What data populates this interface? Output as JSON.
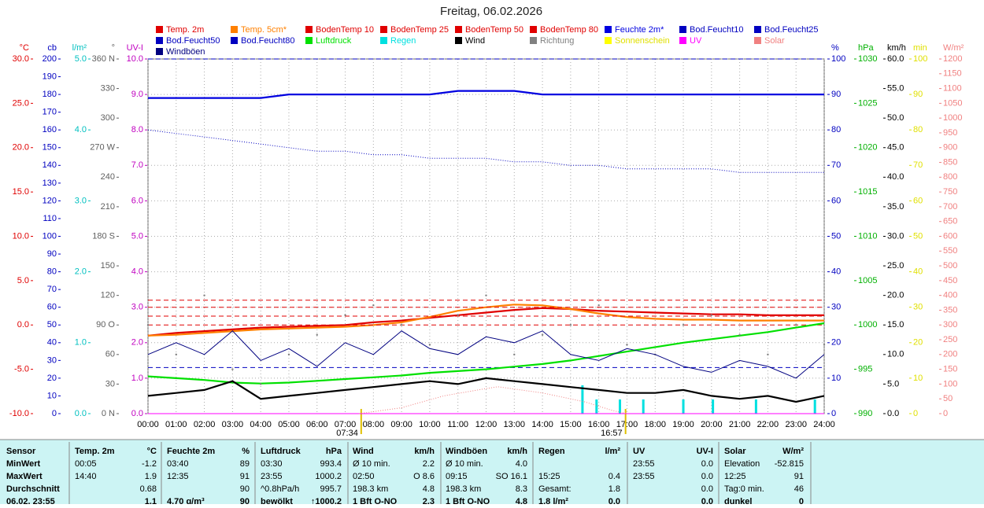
{
  "chart_data": {
    "type": "line",
    "title": "Freitag, 06.02.2026",
    "xlim": [
      0,
      24
    ],
    "xticks": [
      {
        "value": 0,
        "label": "00:00"
      },
      {
        "value": 1,
        "label": "01:00"
      },
      {
        "value": 2,
        "label": "02:00"
      },
      {
        "value": 3,
        "label": "03:00"
      },
      {
        "value": 4,
        "label": "04:00"
      },
      {
        "value": 5,
        "label": "05:00"
      },
      {
        "value": 6,
        "label": "06:00"
      },
      {
        "value": 7,
        "label": "07:00"
      },
      {
        "value": 8,
        "label": "08:00"
      },
      {
        "value": 9,
        "label": "09:00"
      },
      {
        "value": 10,
        "label": "10:00"
      },
      {
        "value": 11,
        "label": "11:00"
      },
      {
        "value": 12,
        "label": "12:00"
      },
      {
        "value": 13,
        "label": "13:00"
      },
      {
        "value": 14,
        "label": "14:00"
      },
      {
        "value": 15,
        "label": "15:00"
      },
      {
        "value": 16,
        "label": "16:00"
      },
      {
        "value": 17,
        "label": "17:00"
      },
      {
        "value": 18,
        "label": "18:00"
      },
      {
        "value": 19,
        "label": "19:00"
      },
      {
        "value": 20,
        "label": "20:00"
      },
      {
        "value": 21,
        "label": "21:00"
      },
      {
        "value": 22,
        "label": "22:00"
      },
      {
        "value": 23,
        "label": "23:00"
      },
      {
        "value": 24,
        "label": "24:00"
      }
    ],
    "x": [
      0,
      1,
      2,
      3,
      4,
      5,
      6,
      7,
      8,
      9,
      10,
      11,
      12,
      13,
      14,
      15,
      16,
      17,
      18,
      19,
      20,
      21,
      22,
      23,
      24
    ],
    "annotations": [
      {
        "value": 7.5667,
        "label": "07:34"
      },
      {
        "value": 16.95,
        "label": "16:57"
      }
    ],
    "axes": [
      {
        "label": "°C",
        "side": "left",
        "color": "#e00000",
        "lim": [
          -10,
          30
        ],
        "ticks": [
          {
            "value": -10,
            "label": "-10.0"
          },
          {
            "value": -5,
            "label": "-5.0"
          },
          {
            "value": 0,
            "label": "0.0"
          },
          {
            "value": 5,
            "label": "5.0"
          },
          {
            "value": 10,
            "label": "10.0"
          },
          {
            "value": 15,
            "label": "15.0"
          },
          {
            "value": 20,
            "label": "20.0"
          },
          {
            "value": 25,
            "label": "25.0"
          },
          {
            "value": 30,
            "label": "30.0"
          }
        ]
      },
      {
        "label": "cb",
        "side": "left",
        "color": "#0000c0",
        "lim": [
          0,
          200
        ],
        "ticks": [
          0,
          10,
          20,
          30,
          40,
          50,
          60,
          70,
          80,
          90,
          100,
          110,
          120,
          130,
          140,
          150,
          160,
          170,
          180,
          190,
          200
        ]
      },
      {
        "label": "l/m²",
        "side": "left",
        "color": "#00c0c0",
        "lim": [
          0,
          5
        ],
        "ticks": [
          {
            "value": 0,
            "label": "0.0"
          },
          {
            "value": 1,
            "label": "1.0"
          },
          {
            "value": 2,
            "label": "2.0"
          },
          {
            "value": 3,
            "label": "3.0"
          },
          {
            "value": 4,
            "label": "4.0"
          },
          {
            "value": 5,
            "label": "5.0"
          }
        ]
      },
      {
        "label": "°",
        "side": "left",
        "color": "#606060",
        "lim": [
          0,
          360
        ],
        "ticks": [
          {
            "value": 0,
            "label": "0 N"
          },
          30,
          60,
          {
            "value": 90,
            "label": "90 O"
          },
          120,
          150,
          {
            "value": 180,
            "label": "180 S"
          },
          210,
          240,
          {
            "value": 270,
            "label": "270 W"
          },
          300,
          330,
          {
            "value": 360,
            "label": "360 N"
          }
        ]
      },
      {
        "label": "UV-I",
        "side": "left",
        "color": "#c000c0",
        "grid": true,
        "lim": [
          0,
          10
        ],
        "ticks": [
          {
            "value": 0,
            "label": "0.0"
          },
          {
            "value": 1,
            "label": "1.0"
          },
          {
            "value": 2,
            "label": "2.0"
          },
          {
            "value": 3,
            "label": "3.0"
          },
          {
            "value": 4,
            "label": "4.0"
          },
          {
            "value": 5,
            "label": "5.0"
          },
          {
            "value": 6,
            "label": "6.0"
          },
          {
            "value": 7,
            "label": "7.0"
          },
          {
            "value": 8,
            "label": "8.0"
          },
          {
            "value": 9,
            "label": "9.0"
          },
          {
            "value": 10,
            "label": "10.0"
          }
        ]
      },
      {
        "label": "%",
        "side": "right",
        "color": "#0000c0",
        "lim": [
          0,
          100
        ],
        "ticks": [
          0,
          10,
          20,
          30,
          40,
          50,
          60,
          70,
          80,
          90,
          100
        ]
      },
      {
        "label": "hPa",
        "side": "right",
        "color": "#00b000",
        "lim": [
          990,
          1030
        ],
        "ticks": [
          990,
          995,
          1000,
          1005,
          1010,
          1015,
          1020,
          1025,
          1030
        ]
      },
      {
        "label": "km/h",
        "side": "right",
        "color": "#000000",
        "lim": [
          0,
          60
        ],
        "ticks": [
          {
            "value": 0,
            "label": "0.0"
          },
          {
            "value": 5,
            "label": "5.0"
          },
          {
            "value": 10,
            "label": "10.0"
          },
          {
            "value": 15,
            "label": "15.0"
          },
          {
            "value": 20,
            "label": "20.0"
          },
          {
            "value": 25,
            "label": "25.0"
          },
          {
            "value": 30,
            "label": "30.0"
          },
          {
            "value": 35,
            "label": "35.0"
          },
          {
            "value": 40,
            "label": "40.0"
          },
          {
            "value": 45,
            "label": "45.0"
          },
          {
            "value": 50,
            "label": "50.0"
          },
          {
            "value": 55,
            "label": "55.0"
          },
          {
            "value": 60,
            "label": "60.0"
          }
        ]
      },
      {
        "label": "min",
        "side": "right",
        "color": "#e0e000",
        "lim": [
          0,
          100
        ],
        "ticks": [
          0,
          10,
          20,
          30,
          40,
          50,
          60,
          70,
          80,
          90,
          100
        ]
      },
      {
        "label": "W/m²",
        "side": "right",
        "color": "#f08080",
        "lim": [
          0,
          1200
        ],
        "ticks": [
          0,
          50,
          100,
          150,
          200,
          250,
          300,
          350,
          400,
          450,
          500,
          550,
          600,
          650,
          700,
          750,
          800,
          850,
          900,
          950,
          1000,
          1050,
          1100,
          1150,
          1200
        ]
      }
    ],
    "series": [
      {
        "name": "Temp. 2m",
        "color": "#e00000",
        "axis": "°C",
        "style": "thick",
        "values": [
          -1.2,
          -0.9,
          -0.7,
          -0.5,
          -0.3,
          -0.2,
          -0.1,
          0.0,
          0.3,
          0.5,
          0.8,
          1.1,
          1.4,
          1.7,
          1.9,
          1.8,
          1.6,
          1.5,
          1.4,
          1.3,
          1.2,
          1.2,
          1.1,
          1.1,
          1.1
        ]
      },
      {
        "name": "Temp. 5cm*",
        "color": "#ff8000",
        "axis": "°C",
        "style": "thick",
        "values": [
          -1.2,
          -1.1,
          -0.9,
          -0.7,
          -0.5,
          -0.4,
          -0.3,
          -0.2,
          0.0,
          0.3,
          0.9,
          1.6,
          2.0,
          2.3,
          2.2,
          1.8,
          1.3,
          0.9,
          0.7,
          0.6,
          0.6,
          0.5,
          0.5,
          0.5,
          0.5
        ]
      },
      {
        "name": "BodenTemp 10",
        "color": "#e00000",
        "axis": "°C",
        "style": "dashed",
        "x": [
          0,
          24
        ],
        "values": [
          0.0,
          0.0
        ]
      },
      {
        "name": "BodenTemp 25",
        "color": "#e00000",
        "axis": "°C",
        "style": "dashed",
        "x": [
          0,
          24
        ],
        "values": [
          1.0,
          1.0
        ]
      },
      {
        "name": "BodenTemp 50",
        "color": "#e00000",
        "axis": "°C",
        "style": "dashed",
        "x": [
          0,
          24
        ],
        "values": [
          2.0,
          2.0
        ]
      },
      {
        "name": "BodenTemp 80",
        "color": "#e00000",
        "axis": "°C",
        "style": "dashed",
        "x": [
          0,
          24
        ],
        "values": [
          2.8,
          2.8
        ]
      },
      {
        "name": "Feuchte 2m*",
        "color": "#0000e0",
        "axis": "%",
        "style": "thick",
        "values": [
          89,
          89,
          89,
          89,
          89,
          90,
          90,
          90,
          90,
          90,
          90,
          91,
          91,
          91,
          90,
          90,
          90,
          90,
          90,
          90,
          90,
          90,
          90,
          90,
          90
        ]
      },
      {
        "name": "Bod.Feucht10",
        "color": "#0000c0",
        "axis": "%",
        "style": "dotted",
        "values": [
          80,
          79,
          78,
          77,
          76,
          75,
          74,
          74,
          73,
          73,
          72,
          72,
          72,
          71,
          71,
          70,
          70,
          69,
          69,
          69,
          69,
          68,
          68,
          68,
          68
        ]
      },
      {
        "name": "Bod.Feucht25",
        "color": "#0000c0",
        "axis": "%",
        "style": "dashed",
        "x": [
          0,
          24
        ],
        "values": [
          13,
          13
        ]
      },
      {
        "name": "Bod.Feucht50",
        "color": "#0000c0",
        "axis": "%",
        "style": "dashed",
        "x": [
          0,
          24
        ],
        "values": [
          100,
          100
        ]
      },
      {
        "name": "Bod.Feucht80",
        "color": "#0000c0",
        "axis": "%",
        "style": "dashed",
        "x": [
          0,
          24
        ],
        "values": [
          100,
          100
        ]
      },
      {
        "name": "Luftdruck",
        "color": "#00e000",
        "axis": "hPa",
        "style": "thick",
        "values": [
          994.2,
          994.0,
          993.8,
          993.5,
          993.4,
          993.5,
          993.7,
          993.9,
          994.1,
          994.3,
          994.6,
          994.8,
          995.0,
          995.3,
          995.6,
          996.0,
          996.5,
          997.0,
          997.5,
          998.0,
          998.4,
          998.8,
          999.2,
          999.7,
          1000.2
        ]
      },
      {
        "name": "Regen",
        "color": "#00e0e0",
        "axis": "l/m²",
        "style": "bar",
        "x": [
          15.42,
          15.92,
          16.75,
          17.58,
          19.0,
          20.05,
          21.58,
          23.67
        ],
        "values": [
          0.4,
          0.2,
          0.2,
          0.2,
          0.2,
          0.2,
          0.2,
          0.2
        ]
      },
      {
        "name": "Wind",
        "color": "#000000",
        "axis": "km/h",
        "style": "thick",
        "values": [
          3.0,
          3.5,
          4.0,
          5.5,
          2.5,
          3.0,
          3.5,
          4.0,
          4.5,
          5.0,
          5.5,
          5.0,
          6.0,
          5.5,
          5.0,
          4.5,
          4.0,
          3.5,
          3.5,
          4.0,
          3.0,
          2.5,
          3.0,
          2.0,
          3.0
        ]
      },
      {
        "name": "Richtung",
        "color": "#808080",
        "axis": "°",
        "style": "dots",
        "values": [
          90,
          60,
          120,
          45,
          30,
          60,
          80,
          100,
          110,
          90,
          70,
          100,
          120,
          60,
          80,
          90,
          110,
          70,
          60,
          90,
          100,
          80,
          60,
          90,
          70
        ]
      },
      {
        "name": "Sonnenschein",
        "color": "#ffff00",
        "axis": "min",
        "style": "line",
        "x": [
          0,
          24
        ],
        "values": [
          0,
          0
        ]
      },
      {
        "name": "UV",
        "color": "#ff00ff",
        "axis": "UV-I",
        "style": "line",
        "x": [
          0,
          24
        ],
        "values": [
          0,
          0
        ]
      },
      {
        "name": "Solar",
        "color": "#f08080",
        "axis": "W/m²",
        "style": "dotted",
        "x": [
          7.5,
          9,
          10.5,
          12,
          12.42,
          14,
          15.5,
          16.5,
          17
        ],
        "values": [
          0,
          20,
          60,
          85,
          91,
          70,
          40,
          10,
          0
        ]
      },
      {
        "name": "Windböen",
        "color": "#000080",
        "axis": "km/h",
        "style": "line",
        "values": [
          10,
          12,
          10,
          14,
          9,
          11,
          8,
          12,
          10,
          14,
          11,
          10,
          13,
          12,
          14,
          10,
          9,
          11,
          10,
          8,
          7,
          9,
          8,
          6,
          10
        ]
      }
    ]
  },
  "stats_table": {
    "header": [
      "Sensor",
      "Temp. 2m",
      "°C",
      "Feuchte 2m",
      "%",
      "Luftdruck",
      "hPa",
      "Wind",
      "km/h",
      "Windböen",
      "km/h",
      "Regen",
      "l/m²",
      "UV",
      "UV-I",
      "Solar",
      "W/m²"
    ],
    "rows": [
      [
        "MinWert",
        "00:05",
        "-1.2",
        "03:40",
        "89",
        "03:30",
        "993.4",
        "Ø 10 min.",
        "2.2",
        "Ø 10 min.",
        "4.0",
        null,
        null,
        "23:55",
        "0.0",
        "Elevation",
        "-52.815"
      ],
      [
        "MaxWert",
        "14:40",
        "1.9",
        "12:35",
        "91",
        "23:55",
        "1000.2",
        "02:50",
        "O 8.6",
        "09:15",
        "SO 16.1",
        "15:25",
        "0.4",
        "23:55",
        "0.0",
        "12:25",
        "91"
      ],
      [
        "Durchschnitt",
        null,
        "0.68",
        null,
        "90",
        "^0.8hPa/h",
        "995.7",
        "198.3 km",
        "4.8",
        "198.3 km",
        "8.3",
        "Gesamt:",
        "1.8",
        null,
        "0.0",
        "Tag:0 min.",
        "46"
      ],
      [
        "06.02. 23:55",
        null,
        "1.1",
        "4.70 g/m³",
        "90",
        "bewölkt",
        "↑1000.2",
        "1 Bft O-NO",
        "2.3",
        "1 Bft O-NO",
        "4.8",
        "1.8 l/m²",
        "0.0",
        null,
        "0.0",
        "dunkel",
        "0"
      ]
    ]
  }
}
